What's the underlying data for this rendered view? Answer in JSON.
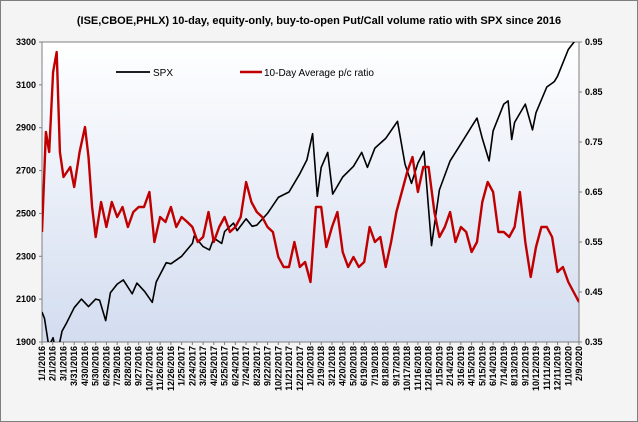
{
  "chart_data": {
    "type": "line",
    "title": "(ISE,CBOE,PHLX) 10-day, equity-only, buy-to-open Put/Call volume ratio with SPX since 2016",
    "y_left": {
      "ylim": [
        1900,
        3300
      ],
      "ticks": [
        "1900",
        "2100",
        "2300",
        "2500",
        "2700",
        "2900",
        "3100",
        "3300"
      ]
    },
    "y_right": {
      "ylim": [
        0.35,
        0.95
      ],
      "ticks": [
        "0.35",
        "0.45",
        "0.55",
        "0.65",
        "0.75",
        "0.85",
        "0.95"
      ]
    },
    "x_ticks": [
      "1/1/2016",
      "2/1/2016",
      "3/1/2016",
      "3/31/2016",
      "4/30/2016",
      "5/30/2016",
      "6/29/2016",
      "7/29/2016",
      "8/28/2016",
      "9/27/2016",
      "10/27/2016",
      "11/26/2016",
      "12/26/2016",
      "1/25/2017",
      "2/24/2017",
      "3/26/2017",
      "4/25/2017",
      "5/25/2017",
      "6/24/2017",
      "7/24/2017",
      "8/23/2017",
      "9/22/2017",
      "10/22/2017",
      "11/21/2017",
      "12/21/2017",
      "1/20/2018",
      "2/19/2018",
      "3/21/2018",
      "4/20/2018",
      "5/20/2018",
      "6/19/2018",
      "7/19/2018",
      "8/18/2018",
      "9/17/2018",
      "10/17/2018",
      "11/16/2018",
      "12/16/2018",
      "1/15/2019",
      "2/14/2019",
      "3/16/2019",
      "4/15/2019",
      "5/15/2019",
      "6/14/2019",
      "7/14/2019",
      "8/13/2019",
      "9/12/2019",
      "10/12/2019",
      "11/11/2019",
      "12/11/2019",
      "1/10/2020",
      "2/9/2020"
    ],
    "x_range": [
      "1/1/2016",
      "2/9/2020"
    ],
    "grid": false,
    "legend_position": "top-left",
    "series": [
      {
        "name": "SPX",
        "axis": "left",
        "color": "#000000",
        "points": [
          [
            "1/1/2016",
            2040
          ],
          [
            "1/8/2016",
            2010
          ],
          [
            "1/20/2016",
            1880
          ],
          [
            "2/1/2016",
            1920
          ],
          [
            "2/11/2016",
            1830
          ],
          [
            "2/26/2016",
            1950
          ],
          [
            "3/10/2016",
            1990
          ],
          [
            "3/31/2016",
            2060
          ],
          [
            "4/20/2016",
            2100
          ],
          [
            "5/10/2016",
            2065
          ],
          [
            "5/30/2016",
            2100
          ],
          [
            "6/10/2016",
            2095
          ],
          [
            "6/27/2016",
            2000
          ],
          [
            "7/10/2016",
            2130
          ],
          [
            "7/29/2016",
            2170
          ],
          [
            "8/15/2016",
            2190
          ],
          [
            "9/9/2016",
            2125
          ],
          [
            "9/22/2016",
            2175
          ],
          [
            "10/14/2016",
            2135
          ],
          [
            "11/4/2016",
            2085
          ],
          [
            "11/15/2016",
            2180
          ],
          [
            "12/13/2016",
            2270
          ],
          [
            "12/26/2016",
            2265
          ],
          [
            "1/25/2017",
            2300
          ],
          [
            "2/24/2017",
            2360
          ],
          [
            "3/1/2017",
            2395
          ],
          [
            "3/26/2017",
            2345
          ],
          [
            "4/13/2017",
            2330
          ],
          [
            "4/25/2017",
            2385
          ],
          [
            "5/17/2017",
            2360
          ],
          [
            "5/25/2017",
            2415
          ],
          [
            "6/19/2017",
            2455
          ],
          [
            "6/29/2017",
            2420
          ],
          [
            "7/24/2017",
            2475
          ],
          [
            "8/10/2017",
            2440
          ],
          [
            "8/23/2017",
            2445
          ],
          [
            "9/22/2017",
            2500
          ],
          [
            "10/22/2017",
            2575
          ],
          [
            "11/21/2017",
            2600
          ],
          [
            "12/21/2017",
            2685
          ],
          [
            "1/10/2018",
            2750
          ],
          [
            "1/26/2018",
            2872
          ],
          [
            "2/8/2018",
            2580
          ],
          [
            "2/19/2018",
            2715
          ],
          [
            "3/9/2018",
            2785
          ],
          [
            "3/23/2018",
            2590
          ],
          [
            "4/20/2018",
            2670
          ],
          [
            "5/20/2018",
            2720
          ],
          [
            "6/12/2018",
            2785
          ],
          [
            "6/28/2018",
            2715
          ],
          [
            "7/19/2018",
            2805
          ],
          [
            "8/18/2018",
            2850
          ],
          [
            "9/20/2018",
            2930
          ],
          [
            "10/11/2018",
            2730
          ],
          [
            "10/29/2018",
            2640
          ],
          [
            "11/16/2018",
            2735
          ],
          [
            "12/3/2018",
            2790
          ],
          [
            "12/24/2018",
            2350
          ],
          [
            "1/15/2019",
            2610
          ],
          [
            "2/14/2019",
            2745
          ],
          [
            "3/16/2019",
            2825
          ],
          [
            "4/15/2019",
            2905
          ],
          [
            "4/30/2019",
            2945
          ],
          [
            "5/15/2019",
            2850
          ],
          [
            "6/3/2019",
            2745
          ],
          [
            "6/14/2019",
            2885
          ],
          [
            "7/14/2019",
            3010
          ],
          [
            "7/26/2019",
            3025
          ],
          [
            "8/5/2019",
            2845
          ],
          [
            "8/13/2019",
            2925
          ],
          [
            "9/12/2019",
            3010
          ],
          [
            "10/2/2019",
            2890
          ],
          [
            "10/12/2019",
            2970
          ],
          [
            "11/11/2019",
            3090
          ],
          [
            "12/2/2019",
            3115
          ],
          [
            "12/11/2019",
            3140
          ],
          [
            "1/10/2020",
            3265
          ],
          [
            "2/9/2020",
            3330
          ]
        ]
      },
      {
        "name": "10-Day Average p/c ratio",
        "axis": "right",
        "color": "#c00000",
        "points": [
          [
            "1/1/2016",
            0.57
          ],
          [
            "1/12/2016",
            0.77
          ],
          [
            "1/21/2016",
            0.73
          ],
          [
            "2/1/2016",
            0.89
          ],
          [
            "2/11/2016",
            0.93
          ],
          [
            "2/20/2016",
            0.73
          ],
          [
            "3/1/2016",
            0.68
          ],
          [
            "3/20/2016",
            0.7
          ],
          [
            "3/31/2016",
            0.66
          ],
          [
            "4/15/2016",
            0.73
          ],
          [
            "4/30/2016",
            0.78
          ],
          [
            "5/10/2016",
            0.72
          ],
          [
            "5/20/2016",
            0.62
          ],
          [
            "5/30/2016",
            0.56
          ],
          [
            "6/14/2016",
            0.63
          ],
          [
            "6/29/2016",
            0.58
          ],
          [
            "7/14/2016",
            0.63
          ],
          [
            "7/29/2016",
            0.6
          ],
          [
            "8/13/2016",
            0.62
          ],
          [
            "8/28/2016",
            0.58
          ],
          [
            "9/12/2016",
            0.61
          ],
          [
            "9/27/2016",
            0.62
          ],
          [
            "10/12/2016",
            0.62
          ],
          [
            "10/27/2016",
            0.65
          ],
          [
            "11/10/2016",
            0.55
          ],
          [
            "11/26/2016",
            0.6
          ],
          [
            "12/11/2016",
            0.59
          ],
          [
            "12/26/2016",
            0.62
          ],
          [
            "1/10/2017",
            0.58
          ],
          [
            "1/25/2017",
            0.6
          ],
          [
            "2/10/2017",
            0.59
          ],
          [
            "2/24/2017",
            0.58
          ],
          [
            "3/11/2017",
            0.55
          ],
          [
            "3/26/2017",
            0.56
          ],
          [
            "4/10/2017",
            0.61
          ],
          [
            "4/25/2017",
            0.55
          ],
          [
            "5/10/2017",
            0.58
          ],
          [
            "5/25/2017",
            0.6
          ],
          [
            "6/9/2017",
            0.57
          ],
          [
            "6/24/2017",
            0.58
          ],
          [
            "7/9/2017",
            0.6
          ],
          [
            "7/24/2017",
            0.67
          ],
          [
            "8/8/2017",
            0.63
          ],
          [
            "8/23/2017",
            0.61
          ],
          [
            "9/7/2017",
            0.6
          ],
          [
            "9/22/2017",
            0.58
          ],
          [
            "10/7/2017",
            0.57
          ],
          [
            "10/22/2017",
            0.52
          ],
          [
            "11/6/2017",
            0.5
          ],
          [
            "11/21/2017",
            0.5
          ],
          [
            "12/6/2017",
            0.55
          ],
          [
            "12/21/2017",
            0.5
          ],
          [
            "1/5/2018",
            0.51
          ],
          [
            "1/20/2018",
            0.47
          ],
          [
            "2/4/2018",
            0.62
          ],
          [
            "2/19/2018",
            0.62
          ],
          [
            "3/5/2018",
            0.54
          ],
          [
            "3/21/2018",
            0.58
          ],
          [
            "4/5/2018",
            0.61
          ],
          [
            "4/20/2018",
            0.53
          ],
          [
            "5/5/2018",
            0.5
          ],
          [
            "5/20/2018",
            0.52
          ],
          [
            "6/4/2018",
            0.5
          ],
          [
            "6/19/2018",
            0.51
          ],
          [
            "7/4/2018",
            0.58
          ],
          [
            "7/19/2018",
            0.55
          ],
          [
            "8/3/2018",
            0.56
          ],
          [
            "8/18/2018",
            0.5
          ],
          [
            "9/2/2018",
            0.55
          ],
          [
            "9/17/2018",
            0.61
          ],
          [
            "10/2/2018",
            0.65
          ],
          [
            "10/17/2018",
            0.69
          ],
          [
            "11/1/2018",
            0.72
          ],
          [
            "11/16/2018",
            0.65
          ],
          [
            "12/1/2018",
            0.7
          ],
          [
            "12/16/2018",
            0.7
          ],
          [
            "1/1/2019",
            0.61
          ],
          [
            "1/15/2019",
            0.56
          ],
          [
            "1/30/2019",
            0.58
          ],
          [
            "2/14/2019",
            0.61
          ],
          [
            "3/1/2019",
            0.55
          ],
          [
            "3/16/2019",
            0.58
          ],
          [
            "3/31/2019",
            0.57
          ],
          [
            "4/15/2019",
            0.53
          ],
          [
            "4/30/2019",
            0.55
          ],
          [
            "5/15/2019",
            0.63
          ],
          [
            "5/30/2019",
            0.67
          ],
          [
            "6/14/2019",
            0.65
          ],
          [
            "6/29/2019",
            0.57
          ],
          [
            "7/14/2019",
            0.57
          ],
          [
            "7/29/2019",
            0.56
          ],
          [
            "8/13/2019",
            0.58
          ],
          [
            "8/28/2019",
            0.65
          ],
          [
            "9/12/2019",
            0.55
          ],
          [
            "9/27/2019",
            0.48
          ],
          [
            "10/12/2019",
            0.54
          ],
          [
            "10/27/2019",
            0.58
          ],
          [
            "11/11/2019",
            0.58
          ],
          [
            "11/26/2019",
            0.56
          ],
          [
            "12/11/2019",
            0.49
          ],
          [
            "12/26/2019",
            0.5
          ],
          [
            "1/10/2020",
            0.47
          ],
          [
            "1/25/2020",
            0.45
          ],
          [
            "2/9/2020",
            0.43
          ]
        ]
      }
    ]
  }
}
